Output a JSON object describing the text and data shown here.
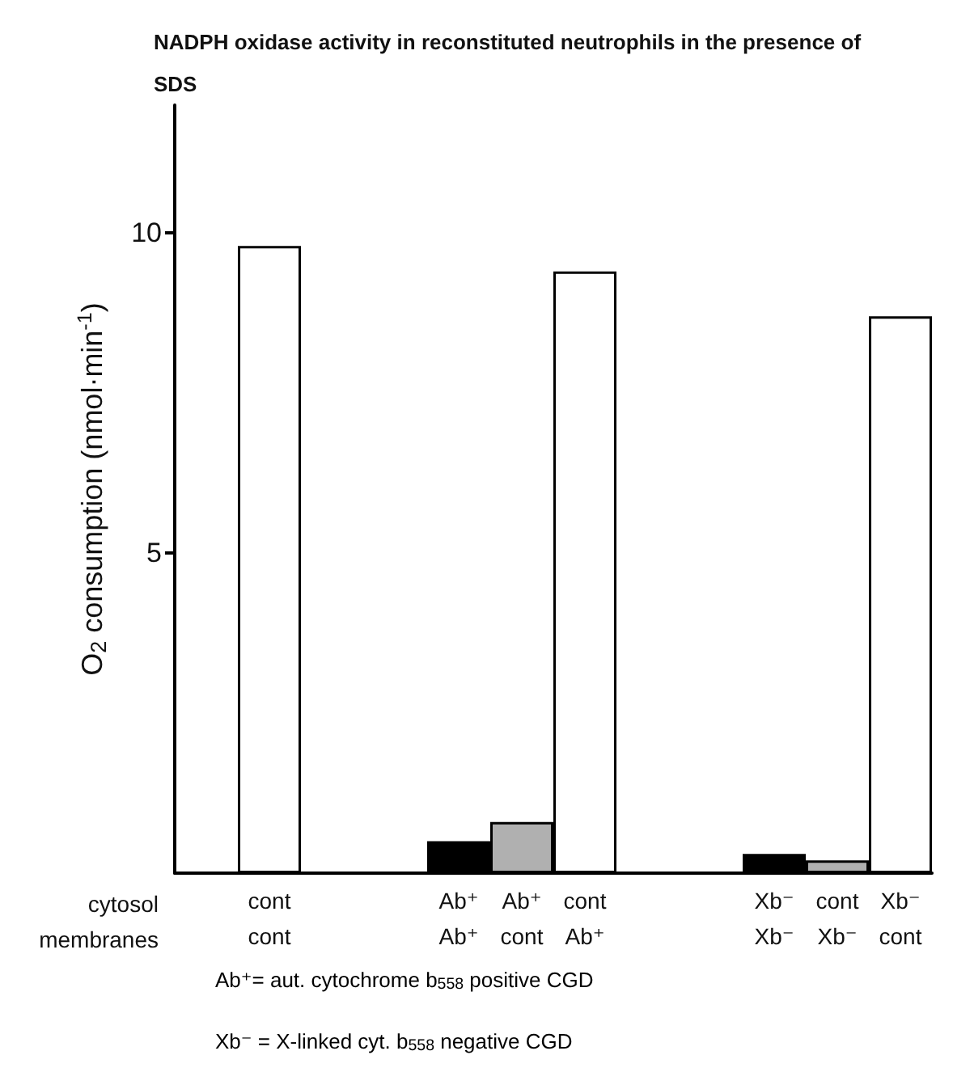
{
  "chart_data": {
    "type": "bar",
    "title": "NADPH oxidase activity in reconstituted neutrophils in the presence of SDS",
    "ylabel": "O$_{2}$ consumption (nmol·min$^{-1}$)",
    "xlabel": "cytosol\nmembranes",
    "categories": [
      null,
      "cont\ncont",
      null,
      null,
      "Ab⁺\nAb⁺",
      "Ab⁺\ncont",
      "cont\nAb⁺",
      null,
      null,
      "Xb⁻\nXb⁻",
      "cont\nXb⁻",
      "Xb⁻\ncont"
    ],
    "values": [
      null,
      9.8,
      null,
      null,
      0.5,
      0.8,
      9.4,
      null,
      null,
      0.3,
      0.2,
      8.7
    ],
    "colors": [
      null,
      "#ffffff",
      null,
      null,
      "#000000",
      "#b0b0b0",
      "#ffffff",
      null,
      null,
      "#000000",
      "#b0b0b0",
      "#ffffff"
    ],
    "ylim": [
      0,
      12
    ],
    "yticks": [
      5,
      10
    ],
    "annotations": [
      "Ab⁺= aut. cytochrome b$_{558}$ positive CGD",
      "Xb⁻ = X-linked cyt. b$_{558}$ negative CGD"
    ]
  }
}
